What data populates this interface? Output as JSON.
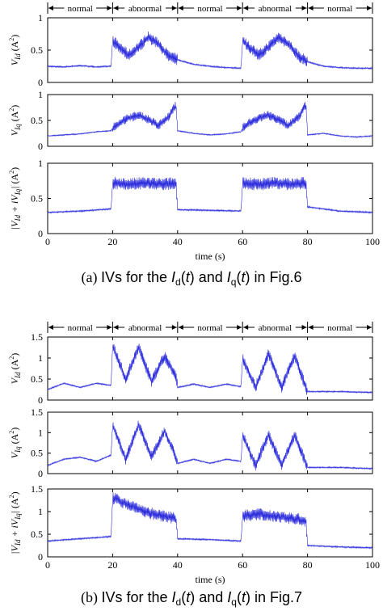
{
  "figure": {
    "subfigures": [
      {
        "caption_label": "(a)",
        "caption_text": "IVs for the I_d(t) and I_q(t) in Fig.6",
        "caption_parts": [
          "IVs for the ",
          "I",
          "d",
          "(",
          "t",
          ") and ",
          "I",
          "q",
          "(",
          "t",
          ") in Fig.6"
        ]
      },
      {
        "caption_label": "(b)",
        "caption_text": "IVs for the I_d(t) and I_q(t) in Fig.7",
        "caption_parts": [
          "IVs for the ",
          "I",
          "d",
          "(",
          "t",
          ") and ",
          "I",
          "q",
          "(",
          "t",
          ") in Fig.7"
        ]
      }
    ]
  },
  "chart_data": [
    {
      "type": "line",
      "subfigure": "a",
      "panel": 1,
      "ylabel": "V_Id (A^2)",
      "ylabel_parts": {
        "main": "V",
        "sub": "Id",
        "unit": "(A",
        "sup": "2",
        "close": ")"
      },
      "xlim": [
        0,
        100
      ],
      "ylim": [
        0,
        1
      ],
      "yticks": [
        "0",
        "0.5",
        "1"
      ],
      "segments": [
        {
          "label": "normal",
          "x": [
            0,
            20
          ]
        },
        {
          "label": "abnormal",
          "x": [
            20,
            40
          ]
        },
        {
          "label": "normal",
          "x": [
            40,
            60
          ]
        },
        {
          "label": "abnormal",
          "x": [
            60,
            80
          ]
        },
        {
          "label": "normal",
          "x": [
            80,
            100
          ]
        }
      ],
      "series": [
        {
          "x": [
            0,
            5,
            10,
            15,
            19.5,
            20,
            22,
            25,
            28,
            31,
            34,
            37,
            40,
            45,
            50,
            55,
            59.5,
            60,
            62,
            65,
            68,
            71,
            74,
            77,
            80,
            85,
            90,
            95,
            100
          ],
          "y": [
            0.25,
            0.24,
            0.26,
            0.24,
            0.25,
            0.65,
            0.55,
            0.42,
            0.55,
            0.7,
            0.6,
            0.42,
            0.35,
            0.28,
            0.25,
            0.23,
            0.22,
            0.65,
            0.55,
            0.42,
            0.55,
            0.7,
            0.6,
            0.42,
            0.32,
            0.25,
            0.23,
            0.22,
            0.22
          ]
        }
      ]
    },
    {
      "type": "line",
      "subfigure": "a",
      "panel": 2,
      "ylabel": "V_Iq (A^2)",
      "ylabel_parts": {
        "main": "V",
        "sub": "Iq",
        "unit": "(A",
        "sup": "2",
        "close": ")"
      },
      "xlim": [
        0,
        100
      ],
      "ylim": [
        0,
        1
      ],
      "yticks": [
        "0",
        "0.5",
        "1"
      ],
      "series": [
        {
          "x": [
            0,
            5,
            10,
            15,
            19.5,
            20,
            22,
            25,
            28,
            31,
            34,
            37,
            39.5,
            40,
            45,
            50,
            55,
            59.5,
            60,
            62,
            65,
            68,
            71,
            74,
            77,
            79.5,
            80,
            85,
            90,
            95,
            100
          ],
          "y": [
            0.2,
            0.22,
            0.24,
            0.28,
            0.3,
            0.35,
            0.45,
            0.55,
            0.6,
            0.52,
            0.4,
            0.55,
            0.8,
            0.3,
            0.25,
            0.22,
            0.24,
            0.28,
            0.35,
            0.45,
            0.55,
            0.6,
            0.52,
            0.4,
            0.55,
            0.8,
            0.22,
            0.25,
            0.2,
            0.18,
            0.2
          ]
        }
      ]
    },
    {
      "type": "line",
      "subfigure": "a",
      "panel": 3,
      "ylabel": "|V_Id + iV_Iq| (A^2)",
      "ylabel_parts": {
        "main": "|V",
        "sub": "Id",
        "mid": " + iV",
        "sub2": "Iq",
        "bar": "|",
        "unit": "(A",
        "sup": "2",
        "close": ")"
      },
      "xlim": [
        0,
        100
      ],
      "ylim": [
        0,
        1
      ],
      "yticks": [
        "0",
        "0.5",
        "1"
      ],
      "xticks": [
        "0",
        "20",
        "40",
        "60",
        "80",
        "100"
      ],
      "xlabel": "time (s)",
      "series": [
        {
          "x": [
            0,
            10,
            19.5,
            20,
            25,
            30,
            35,
            39.5,
            40,
            50,
            59.5,
            60,
            65,
            70,
            75,
            79.5,
            80,
            90,
            100
          ],
          "y": [
            0.3,
            0.32,
            0.35,
            0.72,
            0.7,
            0.72,
            0.7,
            0.72,
            0.34,
            0.33,
            0.32,
            0.72,
            0.7,
            0.72,
            0.7,
            0.72,
            0.38,
            0.32,
            0.3
          ]
        }
      ]
    },
    {
      "type": "line",
      "subfigure": "b",
      "panel": 1,
      "ylabel": "V_Id (A^2)",
      "ylabel_parts": {
        "main": "V",
        "sub": "Id",
        "unit": "(A",
        "sup": "2",
        "close": ")"
      },
      "xlim": [
        0,
        100
      ],
      "ylim": [
        0,
        1.5
      ],
      "yticks": [
        "0",
        "0.5",
        "1",
        "1.5"
      ],
      "segments": [
        {
          "label": "normal",
          "x": [
            0,
            20
          ]
        },
        {
          "label": "abnormal",
          "x": [
            20,
            40
          ]
        },
        {
          "label": "normal",
          "x": [
            40,
            60
          ]
        },
        {
          "label": "abnormal",
          "x": [
            60,
            80
          ]
        },
        {
          "label": "normal",
          "x": [
            80,
            100
          ]
        }
      ],
      "series": [
        {
          "x": [
            0,
            5,
            10,
            15,
            19.5,
            20,
            24,
            28,
            32,
            36,
            39.5,
            40,
            45,
            50,
            55,
            59.5,
            60,
            64,
            68,
            72,
            76,
            79.5,
            80,
            90,
            100
          ],
          "y": [
            0.25,
            0.4,
            0.3,
            0.4,
            0.35,
            1.3,
            0.5,
            1.25,
            0.45,
            1.05,
            0.55,
            0.3,
            0.38,
            0.3,
            0.38,
            0.32,
            1.0,
            0.3,
            1.1,
            0.3,
            1.05,
            0.3,
            0.2,
            0.2,
            0.18
          ]
        }
      ]
    },
    {
      "type": "line",
      "subfigure": "b",
      "panel": 2,
      "ylabel": "V_Iq (A^2)",
      "ylabel_parts": {
        "main": "V",
        "sub": "Iq",
        "unit": "(A",
        "sup": "2",
        "close": ")"
      },
      "xlim": [
        0,
        100
      ],
      "ylim": [
        0,
        1.5
      ],
      "yticks": [
        "0",
        "0.5",
        "1",
        "1.5"
      ],
      "series": [
        {
          "x": [
            0,
            5,
            10,
            15,
            19.5,
            20,
            24,
            28,
            32,
            36,
            39.5,
            40,
            45,
            50,
            55,
            59.5,
            60,
            64,
            68,
            72,
            76,
            79.5,
            80,
            90,
            100
          ],
          "y": [
            0.2,
            0.35,
            0.4,
            0.3,
            0.45,
            1.2,
            0.35,
            1.2,
            0.4,
            1.05,
            0.4,
            0.25,
            0.35,
            0.25,
            0.35,
            0.3,
            0.95,
            0.2,
            0.95,
            0.2,
            0.95,
            0.25,
            0.15,
            0.15,
            0.12
          ]
        }
      ]
    },
    {
      "type": "line",
      "subfigure": "b",
      "panel": 3,
      "ylabel": "|V_Id + iV_Iq| (A^2)",
      "ylabel_parts": {
        "main": "|V",
        "sub": "Id",
        "mid": " + iV",
        "sub2": "Iq",
        "bar": "|",
        "unit": "(A",
        "sup": "2",
        "close": ")"
      },
      "xlim": [
        0,
        100
      ],
      "ylim": [
        0,
        1.5
      ],
      "yticks": [
        "0",
        "0.5",
        "1",
        "1.5"
      ],
      "xticks": [
        "0",
        "20",
        "40",
        "60",
        "80",
        "100"
      ],
      "xlabel": "time (s)",
      "series": [
        {
          "x": [
            0,
            10,
            19.5,
            20,
            25,
            30,
            35,
            39.5,
            40,
            50,
            59.5,
            60,
            65,
            70,
            75,
            79.5,
            80,
            90,
            100
          ],
          "y": [
            0.35,
            0.4,
            0.45,
            1.3,
            1.15,
            1.0,
            0.9,
            0.85,
            0.4,
            0.38,
            0.35,
            0.9,
            0.95,
            0.9,
            0.85,
            0.8,
            0.25,
            0.22,
            0.2
          ]
        }
      ]
    }
  ]
}
